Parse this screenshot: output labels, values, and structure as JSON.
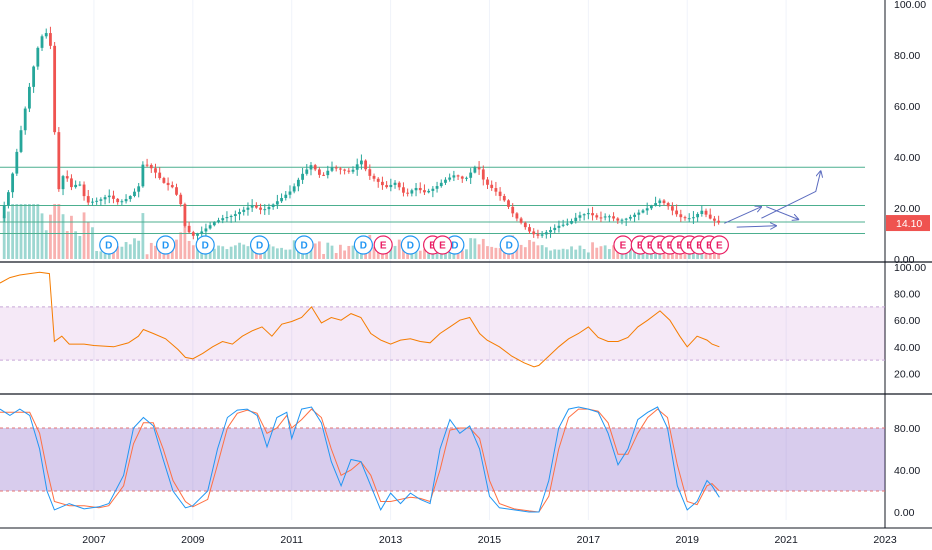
{
  "chart_data": {
    "type": "candlestick",
    "price_axis": {
      "ticks": [
        "100.00",
        "80.00",
        "60.00",
        "40.00",
        "20.00",
        "0.00"
      ],
      "values": [
        100,
        80,
        60,
        40,
        20,
        0
      ]
    },
    "last_price": {
      "label": "14.10",
      "value": 14.1,
      "color": "#ef5350"
    },
    "time_axis": {
      "ticks": [
        "2007",
        "2009",
        "2011",
        "2013",
        "2015",
        "2017",
        "2019",
        "2021",
        "2023"
      ],
      "years": [
        2007,
        2009,
        2011,
        2013,
        2015,
        2017,
        2019,
        2021,
        2023
      ],
      "range": [
        2005.1,
        2023.0
      ]
    },
    "horizontal_levels": [
      36,
      21,
      14.5,
      10
    ],
    "price_series": {
      "points": [
        [
          2005.1,
          16
        ],
        [
          2005.3,
          28
        ],
        [
          2005.5,
          48
        ],
        [
          2005.7,
          68
        ],
        [
          2005.85,
          82
        ],
        [
          2006.0,
          90
        ],
        [
          2006.1,
          86
        ],
        [
          2006.15,
          80
        ],
        [
          2006.25,
          25
        ],
        [
          2006.4,
          34
        ],
        [
          2006.55,
          28
        ],
        [
          2006.7,
          30
        ],
        [
          2006.85,
          22
        ],
        [
          2007.1,
          23
        ],
        [
          2007.3,
          25
        ],
        [
          2007.5,
          22
        ],
        [
          2007.7,
          24
        ],
        [
          2007.9,
          28
        ],
        [
          2008.0,
          38
        ],
        [
          2008.2,
          35
        ],
        [
          2008.4,
          30
        ],
        [
          2008.6,
          28
        ],
        [
          2008.75,
          22
        ],
        [
          2008.85,
          12
        ],
        [
          2009.0,
          9
        ],
        [
          2009.2,
          11
        ],
        [
          2009.4,
          14
        ],
        [
          2009.6,
          16
        ],
        [
          2009.8,
          17
        ],
        [
          2010.0,
          19
        ],
        [
          2010.2,
          21
        ],
        [
          2010.4,
          19
        ],
        [
          2010.6,
          21
        ],
        [
          2010.8,
          24
        ],
        [
          2011.0,
          27
        ],
        [
          2011.2,
          33
        ],
        [
          2011.4,
          37
        ],
        [
          2011.6,
          32
        ],
        [
          2011.8,
          36
        ],
        [
          2012.0,
          35
        ],
        [
          2012.2,
          34
        ],
        [
          2012.4,
          39
        ],
        [
          2012.55,
          33
        ],
        [
          2012.7,
          31
        ],
        [
          2012.9,
          28
        ],
        [
          2013.1,
          30
        ],
        [
          2013.3,
          25
        ],
        [
          2013.5,
          28
        ],
        [
          2013.7,
          26
        ],
        [
          2013.9,
          28
        ],
        [
          2014.1,
          31
        ],
        [
          2014.3,
          33
        ],
        [
          2014.5,
          31
        ],
        [
          2014.75,
          37
        ],
        [
          2014.9,
          30
        ],
        [
          2015.1,
          27
        ],
        [
          2015.3,
          23
        ],
        [
          2015.5,
          17
        ],
        [
          2015.7,
          13
        ],
        [
          2015.85,
          10
        ],
        [
          2016.0,
          9
        ],
        [
          2016.2,
          11
        ],
        [
          2016.4,
          13
        ],
        [
          2016.6,
          14
        ],
        [
          2016.8,
          17
        ],
        [
          2017.0,
          18
        ],
        [
          2017.2,
          16
        ],
        [
          2017.4,
          17
        ],
        [
          2017.6,
          15
        ],
        [
          2017.8,
          16
        ],
        [
          2018.0,
          18
        ],
        [
          2018.2,
          20
        ],
        [
          2018.45,
          23
        ],
        [
          2018.6,
          21
        ],
        [
          2018.75,
          18
        ],
        [
          2018.9,
          16
        ],
        [
          2019.1,
          16
        ],
        [
          2019.3,
          19
        ],
        [
          2019.45,
          16
        ],
        [
          2019.55,
          15
        ],
        [
          2019.65,
          14.1
        ]
      ]
    },
    "forecast_arrows": [
      [
        [
          2019.75,
          14.0
        ],
        [
          2020.5,
          20.5
        ]
      ],
      [
        [
          2020.0,
          12.5
        ],
        [
          2020.8,
          13.0
        ]
      ],
      [
        [
          2020.5,
          16.0
        ],
        [
          2021.6,
          26.5
        ],
        [
          2021.7,
          34.5
        ]
      ],
      [
        [
          2020.6,
          20.5
        ],
        [
          2021.25,
          15.5
        ]
      ]
    ],
    "events": {
      "dividends": {
        "label": "D",
        "color": "#2196f3",
        "years": [
          2007.3,
          2008.45,
          2009.25,
          2010.35,
          2011.25,
          2012.45,
          2013.4,
          2014.3,
          2015.4
        ]
      },
      "earnings": {
        "label": "E",
        "color": "#e91e63",
        "years": [
          2012.85,
          2013.85,
          2014.05,
          2017.7,
          2018.05,
          2018.25,
          2018.45,
          2018.65,
          2018.85,
          2019.05,
          2019.25,
          2019.45,
          2019.65
        ]
      }
    },
    "rsi": {
      "ticks": [
        "100.00",
        "80.00",
        "60.00",
        "40.00",
        "20.00"
      ],
      "values": [
        100,
        80,
        60,
        40,
        20
      ],
      "band": [
        30,
        70
      ],
      "color": "#f57c00",
      "points": [
        [
          2005.1,
          88
        ],
        [
          2005.3,
          92
        ],
        [
          2005.5,
          94
        ],
        [
          2005.7,
          95
        ],
        [
          2005.9,
          96
        ],
        [
          2006.1,
          95
        ],
        [
          2006.2,
          44
        ],
        [
          2006.35,
          48
        ],
        [
          2006.5,
          42
        ],
        [
          2006.8,
          42
        ],
        [
          2007.0,
          41
        ],
        [
          2007.4,
          40
        ],
        [
          2007.7,
          43
        ],
        [
          2007.9,
          48
        ],
        [
          2008.0,
          53
        ],
        [
          2008.2,
          50
        ],
        [
          2008.45,
          46
        ],
        [
          2008.7,
          38
        ],
        [
          2008.85,
          32
        ],
        [
          2009.0,
          31
        ],
        [
          2009.2,
          35
        ],
        [
          2009.4,
          40
        ],
        [
          2009.6,
          44
        ],
        [
          2009.8,
          42
        ],
        [
          2010.0,
          48
        ],
        [
          2010.2,
          52
        ],
        [
          2010.4,
          55
        ],
        [
          2010.6,
          48
        ],
        [
          2010.8,
          57
        ],
        [
          2011.0,
          59
        ],
        [
          2011.2,
          62
        ],
        [
          2011.4,
          70
        ],
        [
          2011.6,
          58
        ],
        [
          2011.8,
          62
        ],
        [
          2012.0,
          60
        ],
        [
          2012.2,
          65
        ],
        [
          2012.4,
          62
        ],
        [
          2012.6,
          50
        ],
        [
          2012.8,
          45
        ],
        [
          2013.0,
          42
        ],
        [
          2013.2,
          45
        ],
        [
          2013.4,
          46
        ],
        [
          2013.6,
          44
        ],
        [
          2013.8,
          43
        ],
        [
          2014.0,
          50
        ],
        [
          2014.2,
          55
        ],
        [
          2014.4,
          60
        ],
        [
          2014.6,
          62
        ],
        [
          2014.8,
          50
        ],
        [
          2014.95,
          45
        ],
        [
          2015.2,
          40
        ],
        [
          2015.45,
          33
        ],
        [
          2015.7,
          28
        ],
        [
          2015.9,
          25
        ],
        [
          2016.0,
          26
        ],
        [
          2016.2,
          33
        ],
        [
          2016.4,
          40
        ],
        [
          2016.6,
          46
        ],
        [
          2016.8,
          50
        ],
        [
          2017.0,
          55
        ],
        [
          2017.2,
          47
        ],
        [
          2017.4,
          44
        ],
        [
          2017.6,
          44
        ],
        [
          2017.8,
          47
        ],
        [
          2018.0,
          55
        ],
        [
          2018.2,
          60
        ],
        [
          2018.45,
          67
        ],
        [
          2018.65,
          60
        ],
        [
          2018.85,
          48
        ],
        [
          2019.0,
          40
        ],
        [
          2019.2,
          48
        ],
        [
          2019.4,
          45
        ],
        [
          2019.5,
          42
        ],
        [
          2019.65,
          40
        ]
      ]
    },
    "stochastic": {
      "ticks": [
        "80.00",
        "40.00",
        "0.00"
      ],
      "values": [
        80,
        40,
        0
      ],
      "band": [
        20,
        80
      ],
      "k_color": "#2196f3",
      "d_color": "#ff7043",
      "k": [
        [
          2005.1,
          98
        ],
        [
          2005.3,
          92
        ],
        [
          2005.5,
          98
        ],
        [
          2005.7,
          92
        ],
        [
          2005.9,
          60
        ],
        [
          2006.05,
          20
        ],
        [
          2006.2,
          2
        ],
        [
          2006.5,
          8
        ],
        [
          2006.8,
          3
        ],
        [
          2007.1,
          5
        ],
        [
          2007.3,
          8
        ],
        [
          2007.6,
          35
        ],
        [
          2007.8,
          80
        ],
        [
          2008.0,
          90
        ],
        [
          2008.2,
          82
        ],
        [
          2008.4,
          50
        ],
        [
          2008.6,
          20
        ],
        [
          2008.85,
          4
        ],
        [
          2009.0,
          6
        ],
        [
          2009.3,
          20
        ],
        [
          2009.5,
          60
        ],
        [
          2009.7,
          90
        ],
        [
          2009.9,
          97
        ],
        [
          2010.1,
          98
        ],
        [
          2010.3,
          92
        ],
        [
          2010.5,
          62
        ],
        [
          2010.7,
          90
        ],
        [
          2010.9,
          95
        ],
        [
          2011.0,
          70
        ],
        [
          2011.2,
          98
        ],
        [
          2011.4,
          100
        ],
        [
          2011.6,
          85
        ],
        [
          2011.8,
          48
        ],
        [
          2012.0,
          25
        ],
        [
          2012.2,
          50
        ],
        [
          2012.4,
          48
        ],
        [
          2012.6,
          25
        ],
        [
          2012.8,
          2
        ],
        [
          2013.0,
          18
        ],
        [
          2013.2,
          8
        ],
        [
          2013.4,
          18
        ],
        [
          2013.6,
          12
        ],
        [
          2013.8,
          8
        ],
        [
          2014.0,
          60
        ],
        [
          2014.2,
          88
        ],
        [
          2014.4,
          75
        ],
        [
          2014.6,
          82
        ],
        [
          2014.8,
          60
        ],
        [
          2015.0,
          15
        ],
        [
          2015.2,
          4
        ],
        [
          2015.5,
          2
        ],
        [
          2015.8,
          0
        ],
        [
          2016.0,
          0
        ],
        [
          2016.2,
          30
        ],
        [
          2016.4,
          80
        ],
        [
          2016.6,
          98
        ],
        [
          2016.8,
          100
        ],
        [
          2017.0,
          98
        ],
        [
          2017.2,
          95
        ],
        [
          2017.4,
          75
        ],
        [
          2017.6,
          45
        ],
        [
          2017.8,
          60
        ],
        [
          2018.0,
          88
        ],
        [
          2018.2,
          95
        ],
        [
          2018.4,
          100
        ],
        [
          2018.6,
          80
        ],
        [
          2018.8,
          25
        ],
        [
          2019.0,
          2
        ],
        [
          2019.2,
          10
        ],
        [
          2019.4,
          30
        ],
        [
          2019.5,
          25
        ],
        [
          2019.65,
          14
        ]
      ],
      "d": [
        [
          2005.1,
          95
        ],
        [
          2005.3,
          95
        ],
        [
          2005.5,
          95
        ],
        [
          2005.7,
          95
        ],
        [
          2005.9,
          75
        ],
        [
          2006.05,
          40
        ],
        [
          2006.2,
          10
        ],
        [
          2006.5,
          6
        ],
        [
          2006.8,
          6
        ],
        [
          2007.1,
          4
        ],
        [
          2007.3,
          6
        ],
        [
          2007.6,
          25
        ],
        [
          2007.8,
          65
        ],
        [
          2008.0,
          85
        ],
        [
          2008.2,
          85
        ],
        [
          2008.4,
          60
        ],
        [
          2008.6,
          30
        ],
        [
          2008.85,
          10
        ],
        [
          2009.0,
          5
        ],
        [
          2009.3,
          12
        ],
        [
          2009.5,
          45
        ],
        [
          2009.7,
          80
        ],
        [
          2009.9,
          94
        ],
        [
          2010.1,
          97
        ],
        [
          2010.3,
          94
        ],
        [
          2010.5,
          75
        ],
        [
          2010.7,
          80
        ],
        [
          2010.9,
          92
        ],
        [
          2011.0,
          80
        ],
        [
          2011.2,
          88
        ],
        [
          2011.4,
          98
        ],
        [
          2011.6,
          90
        ],
        [
          2011.8,
          60
        ],
        [
          2012.0,
          35
        ],
        [
          2012.2,
          40
        ],
        [
          2012.4,
          48
        ],
        [
          2012.6,
          35
        ],
        [
          2012.8,
          10
        ],
        [
          2013.0,
          10
        ],
        [
          2013.2,
          12
        ],
        [
          2013.4,
          14
        ],
        [
          2013.6,
          13
        ],
        [
          2013.8,
          10
        ],
        [
          2014.0,
          40
        ],
        [
          2014.2,
          78
        ],
        [
          2014.4,
          80
        ],
        [
          2014.6,
          80
        ],
        [
          2014.8,
          70
        ],
        [
          2015.0,
          30
        ],
        [
          2015.2,
          8
        ],
        [
          2015.5,
          3
        ],
        [
          2015.8,
          1
        ],
        [
          2016.0,
          0
        ],
        [
          2016.2,
          15
        ],
        [
          2016.4,
          60
        ],
        [
          2016.6,
          90
        ],
        [
          2016.8,
          98
        ],
        [
          2017.0,
          98
        ],
        [
          2017.2,
          96
        ],
        [
          2017.4,
          85
        ],
        [
          2017.6,
          55
        ],
        [
          2017.8,
          55
        ],
        [
          2018.0,
          75
        ],
        [
          2018.2,
          90
        ],
        [
          2018.4,
          98
        ],
        [
          2018.6,
          90
        ],
        [
          2018.8,
          45
        ],
        [
          2019.0,
          10
        ],
        [
          2019.2,
          7
        ],
        [
          2019.4,
          25
        ],
        [
          2019.5,
          27
        ],
        [
          2019.65,
          20
        ]
      ]
    }
  }
}
